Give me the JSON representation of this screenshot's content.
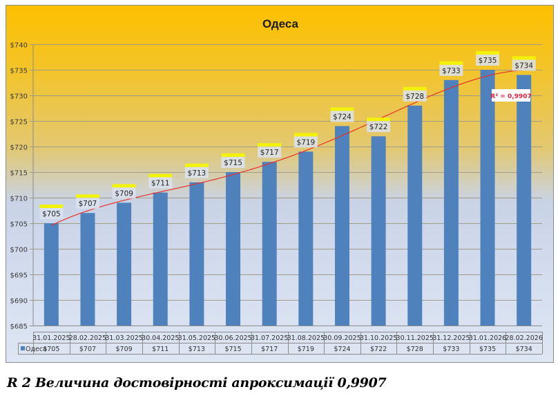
{
  "chart_data": {
    "type": "bar",
    "title": "Одеса",
    "xlabel": "",
    "ylabel": "",
    "ylim": [
      685,
      740
    ],
    "ytick_step": 5,
    "ytick_prefix": "$",
    "grid": true,
    "categories": [
      "31.01.2025",
      "28.02.2025",
      "31.03.2025",
      "30.04.2025",
      "31.05.2025",
      "30.06.2025",
      "31.07.2025",
      "31.08.2025",
      "30.09.2025",
      "31.10.2025",
      "30.11.2025",
      "31.12.2025",
      "31.01.2026",
      "28.02.2026"
    ],
    "series": [
      {
        "name": "Одеса",
        "values": [
          705,
          707,
          709,
          711,
          713,
          715,
          717,
          719,
          724,
          722,
          728,
          733,
          735,
          734
        ],
        "labels": [
          "$705",
          "$707",
          "$709",
          "$711",
          "$713",
          "$715",
          "$717",
          "$719",
          "$724",
          "$722",
          "$728",
          "$733",
          "$735",
          "$734"
        ],
        "color": "#4f81bd"
      }
    ],
    "trendline": {
      "type": "polynomial",
      "color": "#e8302a",
      "r_squared_label": "R² = 0,9907",
      "r_squared": 0.9907
    },
    "data_table": {
      "legend_label": "Одеса",
      "shown": true
    },
    "colors": {
      "bar": "#4f81bd",
      "label_highlight": "#f2f20a",
      "trend": "#e8302a",
      "r2_text": "#e02040"
    }
  },
  "caption": "R 2 Величина достовірності апроксимації 0,9907"
}
